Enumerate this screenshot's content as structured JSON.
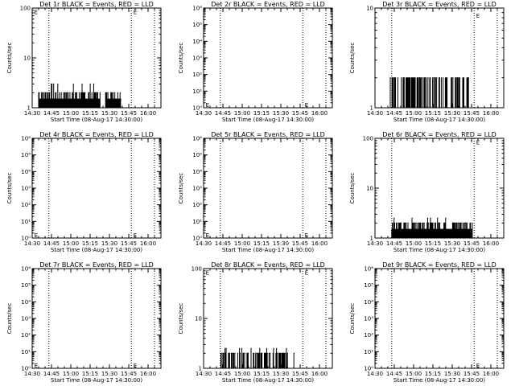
{
  "chart_data": [
    {
      "type": "line",
      "title": "Det 1r BLACK = Events, RED = LLD",
      "xlabel": "Start Time (08-Aug-17 14:30:00)",
      "ylabel": "Counts/sec",
      "scale": "log",
      "ylim": [
        1,
        100
      ],
      "y_ticks": [
        "1",
        "10",
        "100"
      ],
      "x_ticks": [
        "14:30",
        "14:45",
        "15:00",
        "15:15",
        "15:30",
        "15:45",
        "16:00"
      ],
      "x_range_min": [
        0,
        100
      ],
      "vlines_min": [
        13,
        77,
        95
      ],
      "e_markers": [
        {
          "x_min": 1,
          "y": 85
        },
        {
          "x_min": 78,
          "y": 85
        }
      ],
      "series": [
        {
          "color": "#000000",
          "segments": [
            {
              "x_min": [
                5,
                53
              ],
              "base": 1.5,
              "peak": 2,
              "peak2": 3
            },
            {
              "x_min": [
                57,
                69
              ],
              "base": 1.5,
              "peak": 2,
              "peak2": 2.6
            }
          ]
        }
      ]
    },
    {
      "type": "line",
      "title": "Det 2r BLACK = Events, RED = LLD",
      "xlabel": "Start Time (08-Aug-17 14:30:00)",
      "ylabel": "Counts/sec",
      "scale": "log",
      "ylim": [
        1,
        1000000
      ],
      "y_ticks": [
        "10⁰",
        "10¹",
        "10²",
        "10³",
        "10⁴",
        "10⁵",
        "10⁶"
      ],
      "x_ticks": [
        "14:30",
        "14:45",
        "15:00",
        "15:15",
        "15:30",
        "15:45",
        "16:00"
      ],
      "x_range_min": [
        0,
        100
      ],
      "vlines_min": [
        13,
        77,
        95
      ],
      "e_markers": [
        {
          "x_min": 1,
          "y": 1.6
        },
        {
          "x_min": 78,
          "y": 1.6
        }
      ],
      "series": []
    },
    {
      "type": "line",
      "title": "Det 3r BLACK = Events, RED = LLD",
      "xlabel": "Start Time (08-Aug-17 14:30:00)",
      "ylabel": "Counts/sec",
      "scale": "log",
      "ylim": [
        1,
        10
      ],
      "y_ticks": [
        "1",
        "10"
      ],
      "x_ticks": [
        "14:30",
        "14:45",
        "15:00",
        "15:15",
        "15:30",
        "15:45",
        "16:00"
      ],
      "x_range_min": [
        0,
        100
      ],
      "vlines_min": [
        13,
        77,
        95
      ],
      "e_markers": [
        {
          "x_min": 78,
          "y": 8.5
        }
      ],
      "series": [
        {
          "color": "#000000",
          "segments": [
            {
              "x_min": [
                11,
                73
              ],
              "base": 1,
              "peak": 2,
              "peak2": 2
            }
          ]
        }
      ]
    },
    {
      "type": "line",
      "title": "Det 4r BLACK = Events, RED = LLD",
      "xlabel": "Start Time (08-Aug-17 14:30:00)",
      "ylabel": "Counts/sec",
      "scale": "log",
      "ylim": [
        1,
        1000000
      ],
      "y_ticks": [
        "10⁰",
        "10¹",
        "10²",
        "10³",
        "10⁴",
        "10⁵",
        "10⁶"
      ],
      "x_ticks": [
        "14:30",
        "14:45",
        "15:00",
        "15:15",
        "15:30",
        "15:45",
        "16:00"
      ],
      "x_range_min": [
        0,
        100
      ],
      "vlines_min": [
        13,
        77,
        95
      ],
      "e_markers": [
        {
          "x_min": 1,
          "y": 1.6
        },
        {
          "x_min": 78,
          "y": 1.6
        }
      ],
      "series": []
    },
    {
      "type": "line",
      "title": "Det 5r BLACK = Events, RED = LLD",
      "xlabel": "Start Time (08-Aug-17 14:30:00)",
      "ylabel": "Counts/sec",
      "scale": "log",
      "ylim": [
        1,
        1000000
      ],
      "y_ticks": [
        "10⁰",
        "10¹",
        "10²",
        "10³",
        "10⁴",
        "10⁵",
        "10⁶"
      ],
      "x_ticks": [
        "14:30",
        "14:45",
        "15:00",
        "15:15",
        "15:30",
        "15:45",
        "16:00"
      ],
      "x_range_min": [
        0,
        100
      ],
      "vlines_min": [
        13,
        77,
        95
      ],
      "e_markers": [
        {
          "x_min": 1,
          "y": 1.6
        },
        {
          "x_min": 78,
          "y": 1.6
        }
      ],
      "series": []
    },
    {
      "type": "line",
      "title": "Det 6r BLACK = Events, RED = LLD",
      "xlabel": "Start Time (08-Aug-17 14:30:00)",
      "ylabel": "Counts/sec",
      "scale": "log",
      "ylim": [
        1,
        100
      ],
      "y_ticks": [
        "1",
        "10",
        "100"
      ],
      "x_ticks": [
        "14:30",
        "14:45",
        "15:00",
        "15:15",
        "15:30",
        "15:45",
        "16:00"
      ],
      "x_range_min": [
        0,
        100
      ],
      "vlines_min": [
        13,
        77,
        95
      ],
      "e_markers": [
        {
          "x_min": 78,
          "y": 85
        }
      ],
      "series": [
        {
          "color": "#000000",
          "segments": [
            {
              "x_min": [
                13,
                76
              ],
              "base": 1.5,
              "peak": 2,
              "peak2": 2.5
            }
          ]
        }
      ]
    },
    {
      "type": "line",
      "title": "Det 7r BLACK = Events, RED = LLD",
      "xlabel": "Start Time (08-Aug-17 14:30:00)",
      "ylabel": "Counts/sec",
      "scale": "log",
      "ylim": [
        1,
        1000000
      ],
      "y_ticks": [
        "10⁰",
        "10¹",
        "10²",
        "10³",
        "10⁴",
        "10⁵",
        "10⁶"
      ],
      "x_ticks": [
        "14:30",
        "14:45",
        "15:00",
        "15:15",
        "15:30",
        "15:45",
        "16:00"
      ],
      "x_range_min": [
        0,
        100
      ],
      "vlines_min": [
        13,
        77,
        95
      ],
      "e_markers": [
        {
          "x_min": 1,
          "y": 1.6
        },
        {
          "x_min": 78,
          "y": 1.6
        }
      ],
      "series": []
    },
    {
      "type": "line",
      "title": "Det 8r BLACK = Events, RED = LLD",
      "xlabel": "Start Time (08-Aug-17 14:30:00)",
      "ylabel": "Counts/sec",
      "scale": "log",
      "ylim": [
        1,
        100
      ],
      "y_ticks": [
        "1",
        "10",
        "100"
      ],
      "x_ticks": [
        "14:30",
        "14:45",
        "15:00",
        "15:15",
        "15:30",
        "15:45",
        "16:00"
      ],
      "x_range_min": [
        0,
        100
      ],
      "vlines_min": [
        13,
        77,
        95
      ],
      "e_markers": [
        {
          "x_min": 1,
          "y": 85
        },
        {
          "x_min": 78,
          "y": 85
        }
      ],
      "series": [
        {
          "color": "#000000",
          "segments": [
            {
              "x_min": [
                13,
                71
              ],
              "base": 1,
              "peak": 2,
              "peak2": 2.5
            }
          ]
        }
      ]
    },
    {
      "type": "line",
      "title": "Det 9r BLACK = Events, RED = LLD",
      "xlabel": "Start Time (08-Aug-17 14:30:00)",
      "ylabel": "Counts/sec",
      "scale": "log",
      "ylim": [
        1,
        1000000
      ],
      "y_ticks": [
        "10⁰",
        "10¹",
        "10²",
        "10³",
        "10⁴",
        "10⁵",
        "10⁶"
      ],
      "x_ticks": [
        "14:30",
        "14:45",
        "15:00",
        "15:15",
        "15:30",
        "15:45",
        "16:00"
      ],
      "x_range_min": [
        0,
        100
      ],
      "vlines_min": [
        13,
        77,
        95
      ],
      "e_markers": [
        {
          "x_min": 78,
          "y": 1.6
        }
      ],
      "series": []
    }
  ]
}
